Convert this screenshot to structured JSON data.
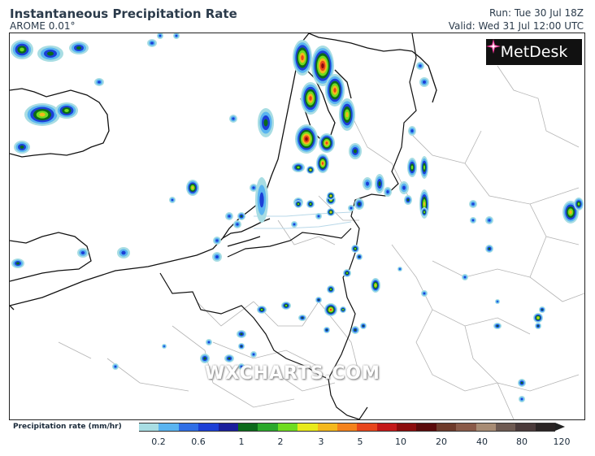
{
  "header": {
    "title": "Instantaneous Precipitation Rate",
    "model": "AROME 0.01°",
    "run": "Run: Tue 30 Jul 18Z",
    "valid": "Valid: Wed 31 Jul 12:00 UTC"
  },
  "logo": {
    "text": "MetDesk",
    "icon": "metdesk-star-icon"
  },
  "watermark": "WXCHARTS.COM",
  "legend": {
    "label": "Precipitation rate (mm/hr)",
    "colors": [
      "#a8dde3",
      "#5ab4f0",
      "#2f6fe6",
      "#1c3fd6",
      "#1a1f9c",
      "#0b6a1a",
      "#2aa82a",
      "#6fdc1f",
      "#e8ea1a",
      "#f4b81c",
      "#f4821c",
      "#e8461c",
      "#c41818",
      "#8c0c0c",
      "#5a0a0a",
      "#6e3a2a",
      "#8a5a48",
      "#a88c74",
      "#6e5a52",
      "#4a3a3a",
      "#2a2424"
    ],
    "ticks": [
      "0.2",
      "0.6",
      "1",
      "2",
      "3",
      "5",
      "10",
      "20",
      "40",
      "80",
      "120"
    ]
  },
  "map": {
    "description_layers": [
      "coastlines",
      "country-borders",
      "region-borders",
      "precipitation-cells"
    ]
  }
}
